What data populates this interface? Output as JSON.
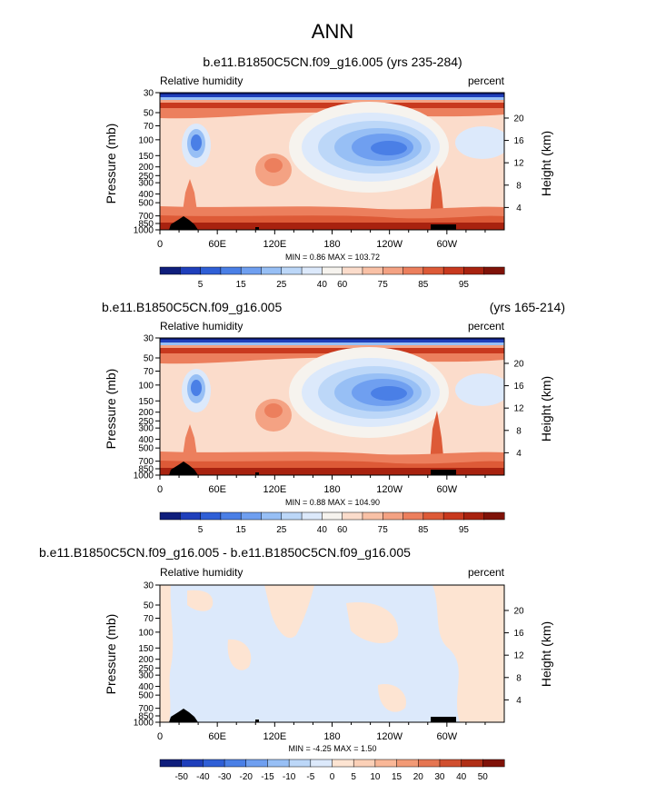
{
  "title": "ANN",
  "chart_data": [
    {
      "type": "contour",
      "title": "b.e11.B1850C5CN.f09_g16.005 (yrs 235-284)",
      "title_right": "",
      "left_label": "Relative humidity",
      "right_label": "percent",
      "ylabel": "Pressure (mb)",
      "ylabel_right": "Height (km)",
      "stats": "MIN =   0.86  MAX = 103.72",
      "pressure_ticks": [
        "30",
        "50",
        "70",
        "100",
        "150",
        "200",
        "250",
        "300",
        "400",
        "500",
        "700",
        "850",
        "1000"
      ],
      "height_ticks": [
        "20",
        "16",
        "12",
        "8",
        "4"
      ],
      "xticks": [
        "0",
        "60E",
        "120E",
        "180",
        "120W",
        "60W"
      ],
      "colorbar_labels": [
        "5",
        "15",
        "25",
        "40",
        "60",
        "75",
        "85",
        "95"
      ],
      "colorbar_colors": [
        "#0f1e7c",
        "#1f3fbb",
        "#2f5fd6",
        "#4a7fe6",
        "#6f9ff0",
        "#97bff5",
        "#bcd7f8",
        "#dce9fb",
        "#f6f3ee",
        "#fbdccb",
        "#f9c1a6",
        "#f4a283",
        "#ec7f5d",
        "#dd5a37",
        "#c8391e",
        "#a8220f",
        "#7f1208"
      ]
    },
    {
      "type": "contour",
      "title": "b.e11.B1850C5CN.f09_g16.005",
      "title_right": "(yrs 165-214)",
      "left_label": "Relative humidity",
      "right_label": "percent",
      "ylabel": "Pressure (mb)",
      "ylabel_right": "Height (km)",
      "stats": "MIN =   0.88  MAX = 104.90",
      "pressure_ticks": [
        "30",
        "50",
        "70",
        "100",
        "150",
        "200",
        "250",
        "300",
        "400",
        "500",
        "700",
        "850",
        "1000"
      ],
      "height_ticks": [
        "20",
        "16",
        "12",
        "8",
        "4"
      ],
      "xticks": [
        "0",
        "60E",
        "120E",
        "180",
        "120W",
        "60W"
      ],
      "colorbar_labels": [
        "5",
        "15",
        "25",
        "40",
        "60",
        "75",
        "85",
        "95"
      ],
      "colorbar_colors": [
        "#0f1e7c",
        "#1f3fbb",
        "#2f5fd6",
        "#4a7fe6",
        "#6f9ff0",
        "#97bff5",
        "#bcd7f8",
        "#dce9fb",
        "#f6f3ee",
        "#fbdccb",
        "#f9c1a6",
        "#f4a283",
        "#ec7f5d",
        "#dd5a37",
        "#c8391e",
        "#a8220f",
        "#7f1208"
      ]
    },
    {
      "type": "contour",
      "title": "b.e11.B1850C5CN.f09_g16.005 - b.e11.B1850C5CN.f09_g16.005",
      "title_right": "",
      "left_label": "Relative humidity",
      "right_label": "percent",
      "ylabel": "Pressure (mb)",
      "ylabel_right": "Height (km)",
      "stats": "MIN =  -4.25  MAX =   1.50",
      "pressure_ticks": [
        "30",
        "50",
        "70",
        "100",
        "150",
        "200",
        "250",
        "300",
        "400",
        "500",
        "700",
        "850",
        "1000"
      ],
      "height_ticks": [
        "20",
        "16",
        "12",
        "8",
        "4"
      ],
      "xticks": [
        "0",
        "60E",
        "120E",
        "180",
        "120W",
        "60W"
      ],
      "colorbar_labels": [
        "-50",
        "-40",
        "-30",
        "-20",
        "-15",
        "-10",
        "-5",
        "0",
        "5",
        "10",
        "15",
        "20",
        "30",
        "40",
        "50"
      ],
      "colorbar_colors": [
        "#0f1e7c",
        "#1f3fbb",
        "#2f5fd6",
        "#4a7fe6",
        "#6f9ff0",
        "#97bff5",
        "#bcd7f8",
        "#dce9fb",
        "#fde4d2",
        "#fbd0b7",
        "#f9b797",
        "#f29a76",
        "#e57652",
        "#d04f2f",
        "#b02f16",
        "#7f1208"
      ]
    }
  ]
}
